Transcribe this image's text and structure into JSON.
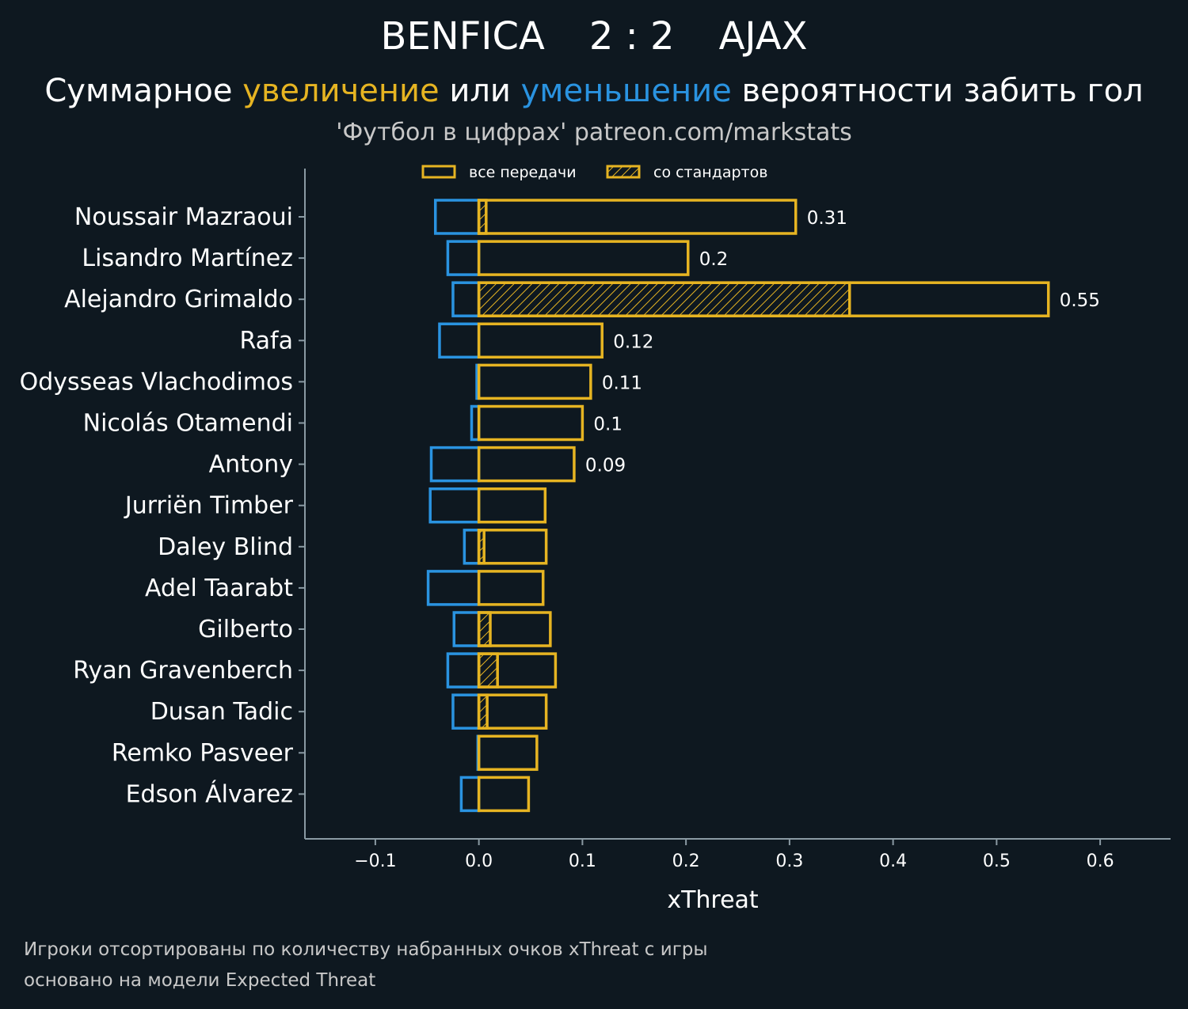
{
  "header": {
    "home_team": "BENFICA",
    "score": "2 : 2",
    "away_team": "AJAX",
    "subtitle_part1": "Суммарное ",
    "subtitle_increase": "увеличение",
    "subtitle_part2": " или ",
    "subtitle_decrease": "уменьшение",
    "subtitle_part3": " вероятности забить гол",
    "source": "'Футбол в цифрах' patreon.com/markstats"
  },
  "footnotes": {
    "line1": "Игроки отсортированы по количеству набранных очков xThreat с игры",
    "line2": "основано на модели Expected Threat"
  },
  "colors": {
    "background": "#0e1820",
    "positive": "#e6b422",
    "negative": "#2a93e0",
    "axis": "#8a9aa3",
    "text": "#ffffff"
  },
  "chart_data": {
    "type": "bar",
    "orientation": "horizontal",
    "xlabel": "xThreat",
    "xlim": [
      -0.168,
      0.668
    ],
    "xticks": [
      -0.1,
      0.0,
      0.1,
      0.2,
      0.3,
      0.4,
      0.5,
      0.6
    ],
    "xtick_labels": [
      "−0.1",
      "0.0",
      "0.1",
      "0.2",
      "0.3",
      "0.4",
      "0.5",
      "0.6"
    ],
    "legend": {
      "placement": "top-center",
      "entries": [
        "все передачи",
        "со стандартов"
      ]
    },
    "categories": [
      "Noussair Mazraoui",
      "Lisandro Martínez",
      "Alejandro Grimaldo",
      "Rafa",
      "Odysseas Vlachodimos",
      "Nicolás Otamendi",
      "Antony",
      "Jurriën Timber",
      "Daley Blind",
      "Adel Taarabt",
      "Gilberto",
      "Ryan Gravenberch",
      "Dusan Tadic",
      "Remko Pasveer",
      "Edson Álvarez"
    ],
    "series": [
      {
        "name": "все передачи",
        "role": "positive",
        "values": [
          0.306,
          0.202,
          0.55,
          0.119,
          0.108,
          0.1,
          0.092,
          0.064,
          0.065,
          0.062,
          0.069,
          0.074,
          0.065,
          0.056,
          0.048
        ]
      },
      {
        "name": "со стандартов",
        "role": "positive-hatched",
        "values": [
          0.007,
          0.0,
          0.358,
          0.0,
          0.0,
          0.0,
          0.0,
          0.0,
          0.005,
          0.0,
          0.011,
          0.018,
          0.008,
          0.0,
          0.0
        ]
      },
      {
        "role": "negative",
        "values": [
          -0.042,
          -0.03,
          -0.025,
          -0.038,
          -0.002,
          -0.007,
          -0.046,
          -0.047,
          -0.014,
          -0.049,
          -0.024,
          -0.03,
          -0.025,
          -0.001,
          -0.017
        ]
      }
    ],
    "data_labels": [
      "0.31",
      "0.2",
      "0.55",
      "0.12",
      "0.11",
      "0.1",
      "0.09",
      "",
      "",
      "",
      "",
      "",
      "",
      "",
      ""
    ]
  }
}
